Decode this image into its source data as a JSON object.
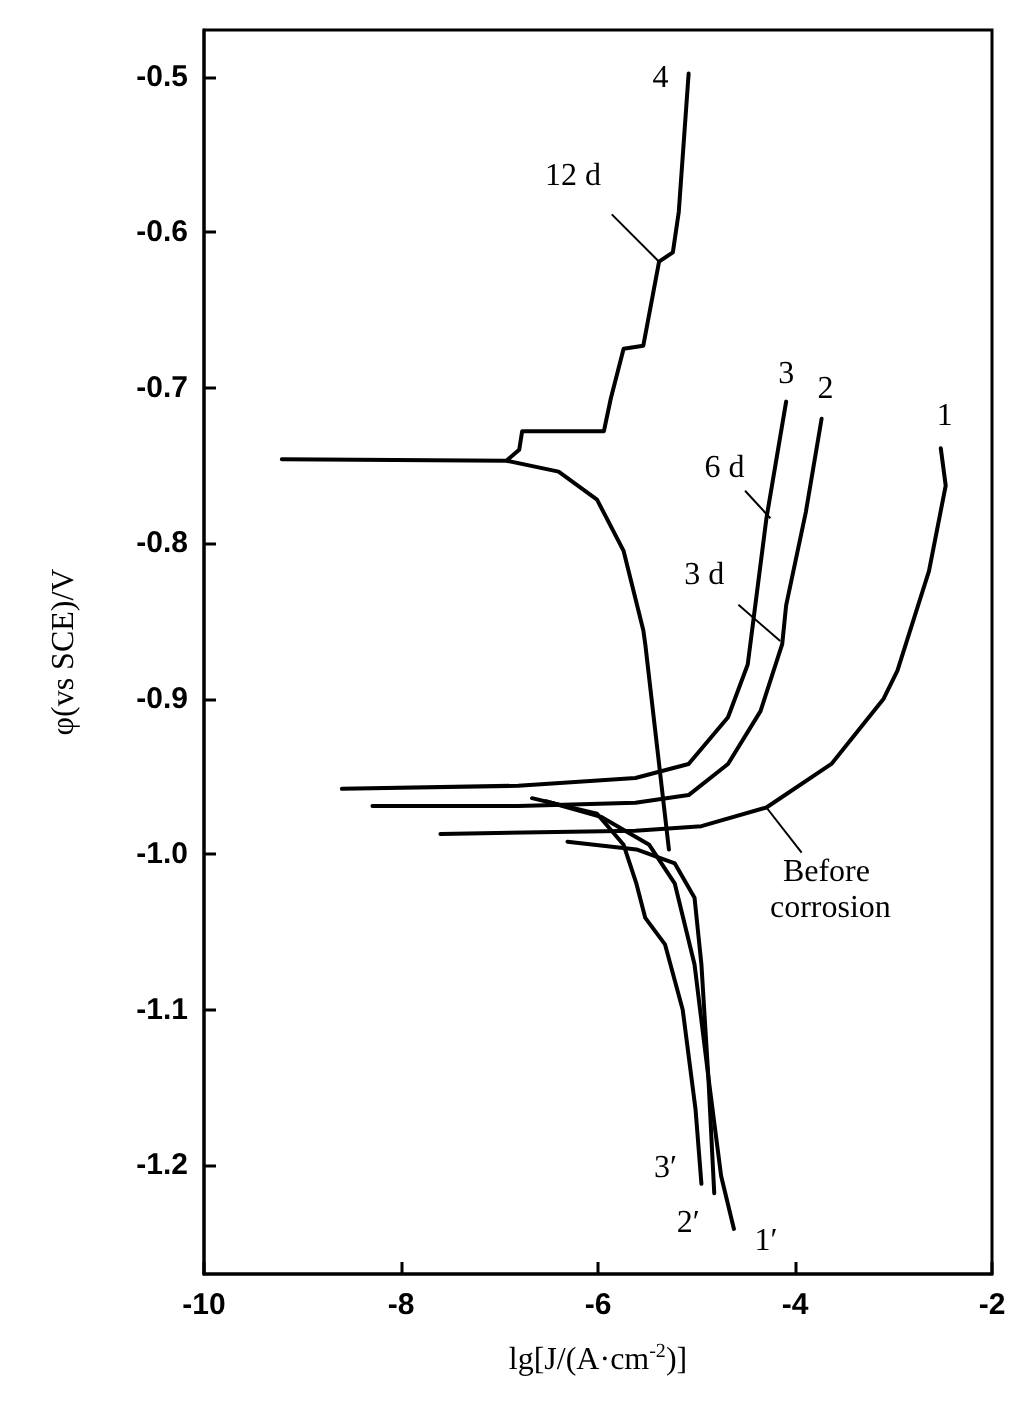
{
  "chart_data": {
    "type": "line",
    "xlabel": "lg[J/(A·cm$^{-2}$)]",
    "ylabel": "φ(vs SCE)/V",
    "xlim": [
      -10,
      -2
    ],
    "xticks": [
      -10,
      -8,
      -6,
      -4,
      -2
    ],
    "ylim": [
      -1.27,
      -0.47
    ],
    "yticks": [
      -1.2,
      -1.1,
      {
        "value": -1,
        "label": "-1.0"
      },
      -0.9,
      -0.8,
      -0.7,
      -0.6,
      -0.5
    ],
    "marker": "none",
    "line_style": "solid",
    "series": [
      {
        "color": "#000000",
        "x": [
          -5.08,
          -5.18,
          -5.24,
          -5.38,
          -5.54,
          -5.74,
          -5.87,
          -5.94,
          -6.77,
          -6.8,
          -6.93,
          -9.21,
          -6.93,
          -6.4,
          -6.01,
          -5.74,
          -5.54,
          -5.52,
          -5.38,
          -5.28
        ],
        "values": [
          -0.498,
          -0.587,
          -0.613,
          -0.619,
          -0.673,
          -0.675,
          -0.707,
          -0.728,
          -0.728,
          -0.74,
          -0.747,
          -0.746,
          -0.747,
          -0.754,
          -0.772,
          -0.805,
          -0.856,
          -0.865,
          -0.942,
          -0.997
        ]
      },
      {
        "color": "#000000",
        "x": [
          -8.6,
          -6.81,
          -5.62,
          -5.08,
          -4.68,
          -4.48,
          -4.29,
          -4.09
        ],
        "values": [
          -0.958,
          -0.956,
          -0.951,
          -0.942,
          -0.912,
          -0.878,
          -0.784,
          -0.709
        ]
      },
      {
        "color": "#000000",
        "x": [
          -8.29,
          -6.81,
          -5.62,
          -5.08,
          -4.68,
          -4.35,
          -4.13,
          -4.09,
          -3.89,
          -3.73
        ],
        "values": [
          -0.969,
          -0.969,
          -0.967,
          -0.962,
          -0.942,
          -0.908,
          -0.865,
          -0.84,
          -0.78,
          -0.72
        ]
      },
      {
        "color": "#000000",
        "x": [
          -7.6,
          -5.62,
          -4.95,
          -4.29,
          -3.63,
          -3.1,
          -2.96,
          -2.64,
          -2.47,
          -2.52
        ],
        "values": [
          -0.987,
          -0.985,
          -0.982,
          -0.97,
          -0.942,
          -0.9,
          -0.882,
          -0.818,
          -0.763,
          -0.739
        ]
      },
      {
        "color": "#000000",
        "x": [
          -6.67,
          -6.01,
          -5.74,
          -5.61,
          -5.52,
          -5.32,
          -5.14,
          -5.01,
          -4.95
        ],
        "values": [
          -0.964,
          -0.974,
          -0.994,
          -1.019,
          -1.041,
          -1.058,
          -1.1,
          -1.164,
          -1.212
        ]
      },
      {
        "color": "#000000",
        "x": [
          -6.53,
          -5.97,
          -5.48,
          -5.22,
          -5.02,
          -4.88,
          -4.82
        ],
        "values": [
          -0.966,
          -0.976,
          -0.994,
          -1.019,
          -1.071,
          -1.143,
          -1.218
        ]
      },
      {
        "color": "#000000",
        "x": [
          -6.31,
          -5.61,
          -5.22,
          -5.02,
          -4.95,
          -4.88,
          -4.75,
          -4.62
        ],
        "values": [
          -0.992,
          -0.997,
          -1.006,
          -1.028,
          -1.071,
          -1.143,
          -1.207,
          -1.241
        ]
      }
    ],
    "annotations": [
      {
        "text": "4",
        "x": -5.08,
        "y": -0.498
      },
      {
        "text": "12 d",
        "x": -5.38,
        "y": -0.619
      },
      {
        "text": "3",
        "x": -4.09,
        "y": -0.709
      },
      {
        "text": "2",
        "x": -3.73,
        "y": -0.72
      },
      {
        "text": "1",
        "x": -2.52,
        "y": -0.739
      },
      {
        "text": "6 d",
        "x": -4.25,
        "y": -0.784
      },
      {
        "text": "3 d",
        "x": -4.15,
        "y": -0.863
      },
      {
        "text": "Before corrosion",
        "x": -4.29,
        "y": -0.97
      },
      {
        "text": "3′",
        "x": -4.95,
        "y": -1.212
      },
      {
        "text": "2′",
        "x": -4.82,
        "y": -1.218
      },
      {
        "text": "1′",
        "x": -4.62,
        "y": -1.241
      }
    ]
  }
}
